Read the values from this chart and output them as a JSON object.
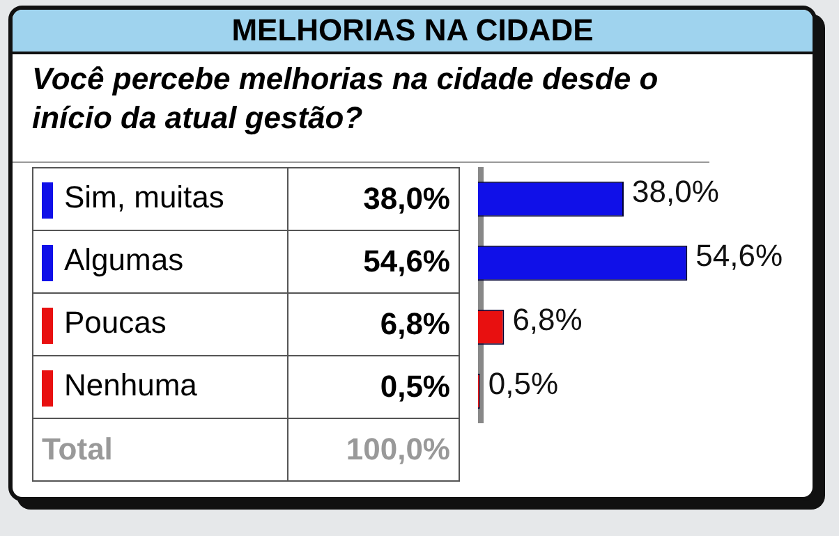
{
  "chart_data": {
    "type": "bar",
    "orientation": "horizontal",
    "title": "MELHORIAS NA CIDADE",
    "subtitle": "Você percebe melhorias na cidade desde o início da atual gestão?",
    "categories": [
      "Sim, muitas",
      "Algumas",
      "Poucas",
      "Nenhuma"
    ],
    "values": [
      38.0,
      54.6,
      6.8,
      0.5
    ],
    "colors": [
      "#1010e8",
      "#1010e8",
      "#e81010",
      "#e81010"
    ],
    "value_labels": [
      "38,0%",
      "54,6%",
      "6,8%",
      "0,5%"
    ],
    "annotations": [
      "Total",
      "100,0%"
    ]
  }
}
